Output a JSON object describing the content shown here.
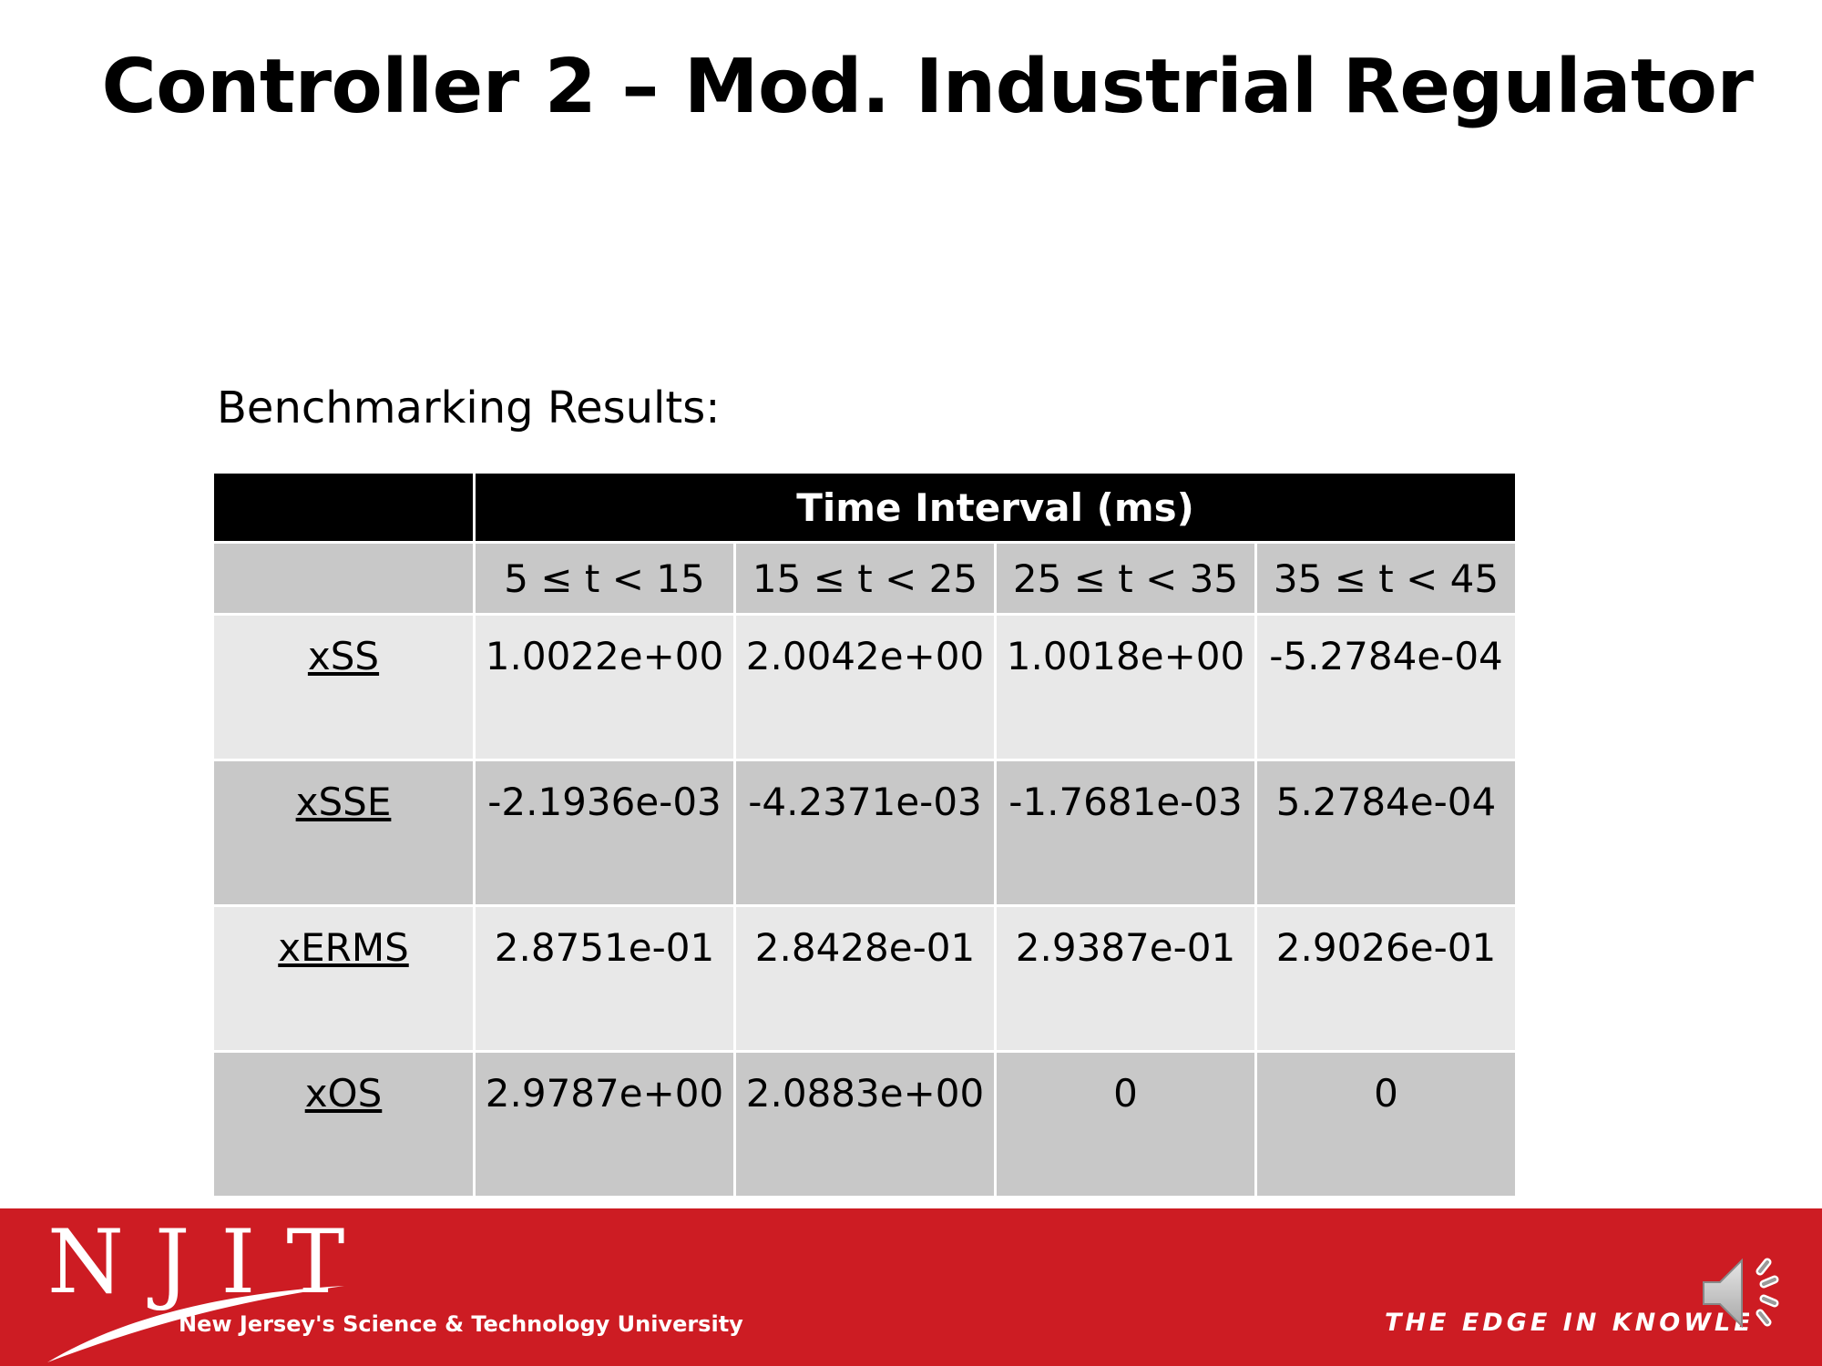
{
  "slide": {
    "title": "Controller 2 – Mod. Industrial Regulator",
    "subtitle": "Benchmarking Results:"
  },
  "table": {
    "group_header": "Time Interval (ms)",
    "intervals": [
      "5 ≤ t < 15",
      "15 ≤ t < 25",
      "25 ≤ t < 35",
      "35 ≤ t < 45"
    ],
    "rows": [
      {
        "label": "xSS",
        "values": [
          "1.0022e+00",
          "2.0042e+00",
          "1.0018e+00",
          "-5.2784e-04"
        ]
      },
      {
        "label": "xSSE",
        "values": [
          "-2.1936e-03",
          "-4.2371e-03",
          "-1.7681e-03",
          "5.2784e-04"
        ]
      },
      {
        "label": "xERMS",
        "values": [
          "2.8751e-01",
          "2.8428e-01",
          "2.9387e-01",
          "2.9026e-01"
        ]
      },
      {
        "label": "xOS",
        "values": [
          "2.9787e+00",
          "2.0883e+00",
          "0",
          "0"
        ]
      }
    ]
  },
  "footer": {
    "logo_text": "NJIT",
    "university": "New Jersey's Science & Technology University",
    "tagline": "THE EDGE IN KNOWLEDGE",
    "background_color": "#cd1c23",
    "audio_icon": "speaker-icon"
  }
}
